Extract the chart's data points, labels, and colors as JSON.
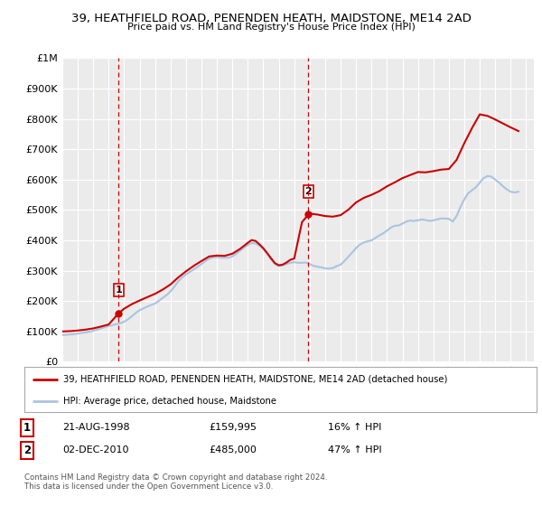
{
  "title": "39, HEATHFIELD ROAD, PENENDEN HEATH, MAIDSTONE, ME14 2AD",
  "subtitle": "Price paid vs. HM Land Registry's House Price Index (HPI)",
  "sale1_label": "21-AUG-1998",
  "sale1_price": 159995,
  "sale1_hpi": "16% ↑ HPI",
  "sale2_label": "02-DEC-2010",
  "sale2_price": 485000,
  "sale2_hpi": "47% ↑ HPI",
  "sale1_x": 1998.646,
  "sale2_x": 2010.918,
  "hpi_line_color": "#aac4e0",
  "price_line_color": "#cc0000",
  "sale_marker_color": "#cc0000",
  "vline_color": "#cc0000",
  "legend_label_price": "39, HEATHFIELD ROAD, PENENDEN HEATH, MAIDSTONE, ME14 2AD (detached house)",
  "legend_label_hpi": "HPI: Average price, detached house, Maidstone",
  "footnote": "Contains HM Land Registry data © Crown copyright and database right 2024.\nThis data is licensed under the Open Government Licence v3.0.",
  "ylim_min": 0,
  "ylim_max": 1000000,
  "xlim_min": 1995,
  "xlim_max": 2025.5,
  "background_color": "#ffffff",
  "plot_bg_color": "#ebebeb",
  "hpi_data_x": [
    1995.0,
    1995.25,
    1995.5,
    1995.75,
    1996.0,
    1996.25,
    1996.5,
    1996.75,
    1997.0,
    1997.25,
    1997.5,
    1997.75,
    1998.0,
    1998.25,
    1998.5,
    1998.75,
    1999.0,
    1999.25,
    1999.5,
    1999.75,
    2000.0,
    2000.25,
    2000.5,
    2000.75,
    2001.0,
    2001.25,
    2001.5,
    2001.75,
    2002.0,
    2002.25,
    2002.5,
    2002.75,
    2003.0,
    2003.25,
    2003.5,
    2003.75,
    2004.0,
    2004.25,
    2004.5,
    2004.75,
    2005.0,
    2005.25,
    2005.5,
    2005.75,
    2006.0,
    2006.25,
    2006.5,
    2006.75,
    2007.0,
    2007.25,
    2007.5,
    2007.75,
    2008.0,
    2008.25,
    2008.5,
    2008.75,
    2009.0,
    2009.25,
    2009.5,
    2009.75,
    2010.0,
    2010.25,
    2010.5,
    2010.75,
    2011.0,
    2011.25,
    2011.5,
    2011.75,
    2012.0,
    2012.25,
    2012.5,
    2012.75,
    2013.0,
    2013.25,
    2013.5,
    2013.75,
    2014.0,
    2014.25,
    2014.5,
    2014.75,
    2015.0,
    2015.25,
    2015.5,
    2015.75,
    2016.0,
    2016.25,
    2016.5,
    2016.75,
    2017.0,
    2017.25,
    2017.5,
    2017.75,
    2018.0,
    2018.25,
    2018.5,
    2018.75,
    2019.0,
    2019.25,
    2019.5,
    2019.75,
    2020.0,
    2020.25,
    2020.5,
    2020.75,
    2021.0,
    2021.25,
    2021.5,
    2021.75,
    2022.0,
    2022.25,
    2022.5,
    2022.75,
    2023.0,
    2023.25,
    2023.5,
    2023.75,
    2024.0,
    2024.25,
    2024.5
  ],
  "hpi_data_y": [
    88000,
    89000,
    90000,
    91000,
    93000,
    95000,
    97000,
    99000,
    102000,
    106000,
    110000,
    114000,
    118000,
    121000,
    124000,
    127000,
    132000,
    140000,
    150000,
    161000,
    170000,
    176000,
    182000,
    187000,
    192000,
    201000,
    211000,
    220000,
    232000,
    248000,
    265000,
    278000,
    288000,
    296000,
    304000,
    313000,
    322000,
    332000,
    340000,
    344000,
    345000,
    343000,
    343000,
    343000,
    347000,
    356000,
    366000,
    376000,
    385000,
    391000,
    390000,
    382000,
    372000,
    355000,
    337000,
    322000,
    315000,
    317000,
    322000,
    326000,
    328000,
    326000,
    326000,
    327000,
    322000,
    316000,
    313000,
    311000,
    308000,
    307000,
    309000,
    315000,
    320000,
    332000,
    346000,
    360000,
    375000,
    386000,
    393000,
    397000,
    400000,
    408000,
    416000,
    423000,
    432000,
    442000,
    448000,
    449000,
    455000,
    462000,
    465000,
    464000,
    466000,
    469000,
    467000,
    464000,
    466000,
    469000,
    472000,
    472000,
    471000,
    462000,
    480000,
    510000,
    535000,
    555000,
    565000,
    575000,
    590000,
    605000,
    612000,
    610000,
    600000,
    590000,
    578000,
    568000,
    560000,
    558000,
    560000
  ],
  "price_data_x": [
    1995.0,
    1995.5,
    1996.0,
    1996.5,
    1997.0,
    1997.5,
    1998.0,
    1998.646,
    1999.0,
    1999.5,
    2000.0,
    2000.5,
    2001.0,
    2001.5,
    2002.0,
    2002.5,
    2003.0,
    2003.5,
    2004.0,
    2004.5,
    2005.0,
    2005.5,
    2006.0,
    2006.5,
    2007.0,
    2007.25,
    2007.5,
    2007.75,
    2008.0,
    2008.25,
    2008.5,
    2008.75,
    2009.0,
    2009.25,
    2009.5,
    2009.75,
    2010.0,
    2010.5,
    2010.918,
    2011.0,
    2011.5,
    2012.0,
    2012.5,
    2013.0,
    2013.5,
    2014.0,
    2014.5,
    2015.0,
    2015.5,
    2016.0,
    2016.5,
    2017.0,
    2017.5,
    2018.0,
    2018.5,
    2019.0,
    2019.5,
    2020.0,
    2020.5,
    2021.0,
    2021.5,
    2022.0,
    2022.5,
    2023.0,
    2023.5,
    2024.0,
    2024.5
  ],
  "price_data_y": [
    100000,
    101000,
    103000,
    106000,
    110000,
    116000,
    123000,
    159995,
    175000,
    190000,
    202000,
    213000,
    224000,
    238000,
    255000,
    278000,
    298000,
    316000,
    332000,
    347000,
    350000,
    349000,
    356000,
    372000,
    392000,
    401000,
    398000,
    387000,
    374000,
    358000,
    341000,
    325000,
    318000,
    320000,
    327000,
    336000,
    340000,
    460000,
    485000,
    488000,
    485000,
    480000,
    478000,
    483000,
    501000,
    525000,
    540000,
    550000,
    562000,
    578000,
    591000,
    605000,
    615000,
    625000,
    624000,
    628000,
    633000,
    635000,
    665000,
    720000,
    770000,
    815000,
    810000,
    798000,
    785000,
    772000,
    760000
  ]
}
